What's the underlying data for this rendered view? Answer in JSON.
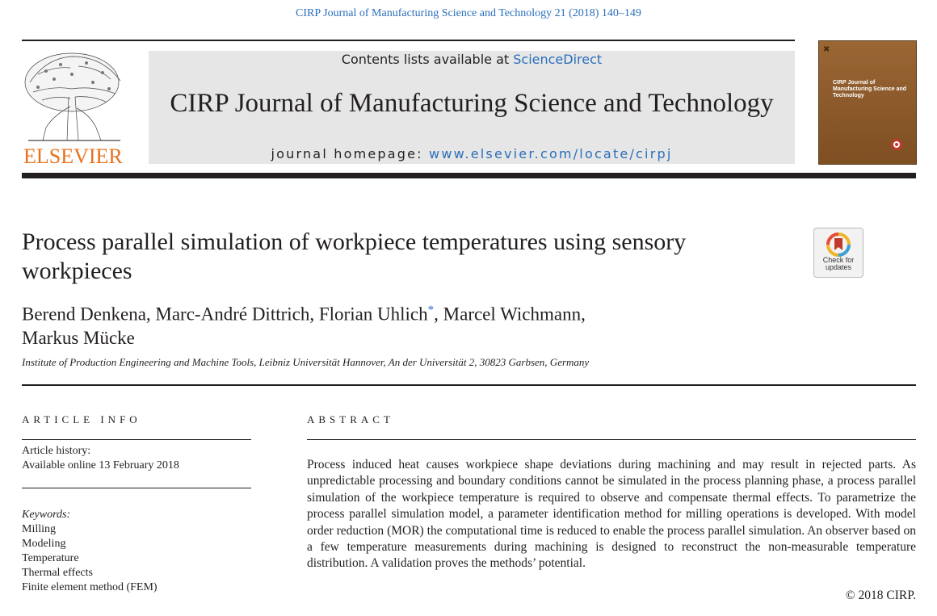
{
  "header": {
    "running_head": "CIRP Journal of Manufacturing Science and Technology 21 (2018) 140–149",
    "contents_prefix": "Contents lists available at ",
    "contents_link": "ScienceDirect",
    "journal_title": "CIRP Journal of Manufacturing Science and Technology",
    "homepage_prefix": "journal homepage: ",
    "homepage_link": "www.elsevier.com/locate/cirpj",
    "publisher": "ELSEVIER",
    "cover_title": "CIRP Journal of Manufacturing Science and Technology"
  },
  "article": {
    "title": "Process parallel simulation of workpiece temperatures using sensory workpieces",
    "authors_line1_a": "Berend Denkena, Marc-André Dittrich, Florian Uhlich",
    "corresponding_mark": "*",
    "authors_line1_b": ", Marcel Wichmann,",
    "authors_line2": "Markus Mücke",
    "affiliation": "Institute of Production Engineering and Machine Tools, Leibniz Universität Hannover, An der Universität 2, 30823 Garbsen, Germany",
    "check_updates": [
      "Check for",
      "updates"
    ]
  },
  "info": {
    "heading": "ARTICLE INFO",
    "history_label": "Article history:",
    "history_value": "Available online 13 February 2018",
    "keywords_label": "Keywords:",
    "keywords": [
      "Milling",
      "Modeling",
      "Temperature",
      "Thermal effects",
      "Finite element method (FEM)"
    ]
  },
  "abstract": {
    "heading": "ABSTRACT",
    "text": "Process induced heat causes workpiece shape deviations during machining and may result in rejected parts. As unpredictable processing and boundary conditions cannot be simulated in the process planning phase, a process parallel simulation of the workpiece temperature is required to observe and compensate thermal effects. To parametrize the process parallel simulation model, a parameter identification method for milling operations is developed. With model order reduction (MOR) the computational time is reduced to enable the process parallel simulation. An observer based on a few temperature measurements during machining is designed to reconstruct the non-measurable temperature distribution. A validation proves the methods’ potential.",
    "copyright": "© 2018 CIRP."
  },
  "colors": {
    "link": "#2a6ebb",
    "elsevier_orange": "#e9711c",
    "banner_gray": "#e6e6e6"
  }
}
